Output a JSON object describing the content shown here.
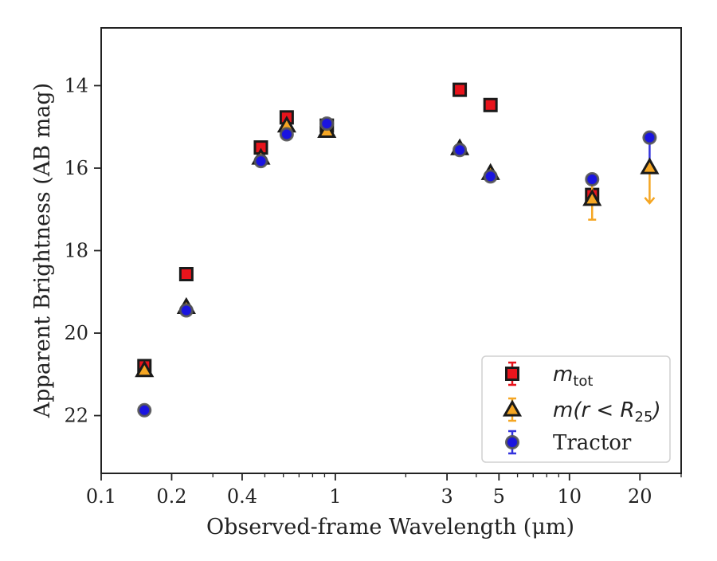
{
  "chart_data": {
    "type": "scatter",
    "xlabel": "Observed-frame Wavelength (μm)",
    "ylabel": "Apparent Brightness (AB mag)",
    "x_scale": "log",
    "xlim": [
      0.1,
      30
    ],
    "ylim": [
      23.4,
      12.6
    ],
    "y_inverted": true,
    "x_ticks": [
      {
        "value": 0.1,
        "label": "0.1"
      },
      {
        "value": 0.2,
        "label": "0.2"
      },
      {
        "value": 0.4,
        "label": "0.4"
      },
      {
        "value": 1,
        "label": "1"
      },
      {
        "value": 3,
        "label": "3"
      },
      {
        "value": 5,
        "label": "5"
      },
      {
        "value": 10,
        "label": "10"
      },
      {
        "value": 20,
        "label": "20"
      }
    ],
    "y_ticks": [
      {
        "value": 14,
        "label": "14"
      },
      {
        "value": 16,
        "label": "16"
      },
      {
        "value": 18,
        "label": "18"
      },
      {
        "value": 20,
        "label": "20"
      },
      {
        "value": 22,
        "label": "22"
      }
    ],
    "grid": false,
    "legend_position": "bottom-right",
    "series": [
      {
        "name": "m_tot",
        "legend_main": "m",
        "legend_sub": "tot",
        "marker": "square",
        "color": "#e8141c",
        "edge_color": "#1a1a1a",
        "error_color": "#e8141c",
        "points": [
          {
            "x": 0.153,
            "y": 20.8
          },
          {
            "x": 0.231,
            "y": 18.57
          },
          {
            "x": 0.481,
            "y": 15.5
          },
          {
            "x": 0.62,
            "y": 14.77
          },
          {
            "x": 0.92,
            "y": 14.97
          },
          {
            "x": 3.4,
            "y": 14.1
          },
          {
            "x": 4.6,
            "y": 14.47
          },
          {
            "x": 12.5,
            "y": 16.65
          }
        ]
      },
      {
        "name": "m(r < R_25)",
        "legend_main": "m(r < R",
        "legend_sub": "25",
        "legend_close": ")",
        "marker": "triangle",
        "color": "#f5a623",
        "edge_color": "#1a1a1a",
        "error_color": "#f5a623",
        "points": [
          {
            "x": 0.153,
            "y": 20.9
          },
          {
            "x": 0.231,
            "y": 19.37
          },
          {
            "x": 0.481,
            "y": 15.75
          },
          {
            "x": 0.62,
            "y": 14.97
          },
          {
            "x": 0.92,
            "y": 15.1
          },
          {
            "x": 3.4,
            "y": 15.52
          },
          {
            "x": 4.6,
            "y": 16.12
          },
          {
            "x": 12.5,
            "y": 16.75,
            "err": 0.5
          },
          {
            "x": 22.0,
            "y": 15.98,
            "upper_limit": true,
            "limit_to": 16.85
          }
        ]
      },
      {
        "name": "Tractor",
        "legend_main": "Tractor",
        "marker": "circle",
        "color": "#1a14e0",
        "edge_color": "#555555",
        "error_color": "#3333dd",
        "points": [
          {
            "x": 0.153,
            "y": 21.87
          },
          {
            "x": 0.231,
            "y": 19.45
          },
          {
            "x": 0.481,
            "y": 15.83
          },
          {
            "x": 0.62,
            "y": 15.18
          },
          {
            "x": 0.92,
            "y": 14.92
          },
          {
            "x": 3.4,
            "y": 15.56
          },
          {
            "x": 4.6,
            "y": 16.2
          },
          {
            "x": 12.5,
            "y": 16.27
          },
          {
            "x": 22.0,
            "y": 15.26
          }
        ]
      }
    ]
  }
}
